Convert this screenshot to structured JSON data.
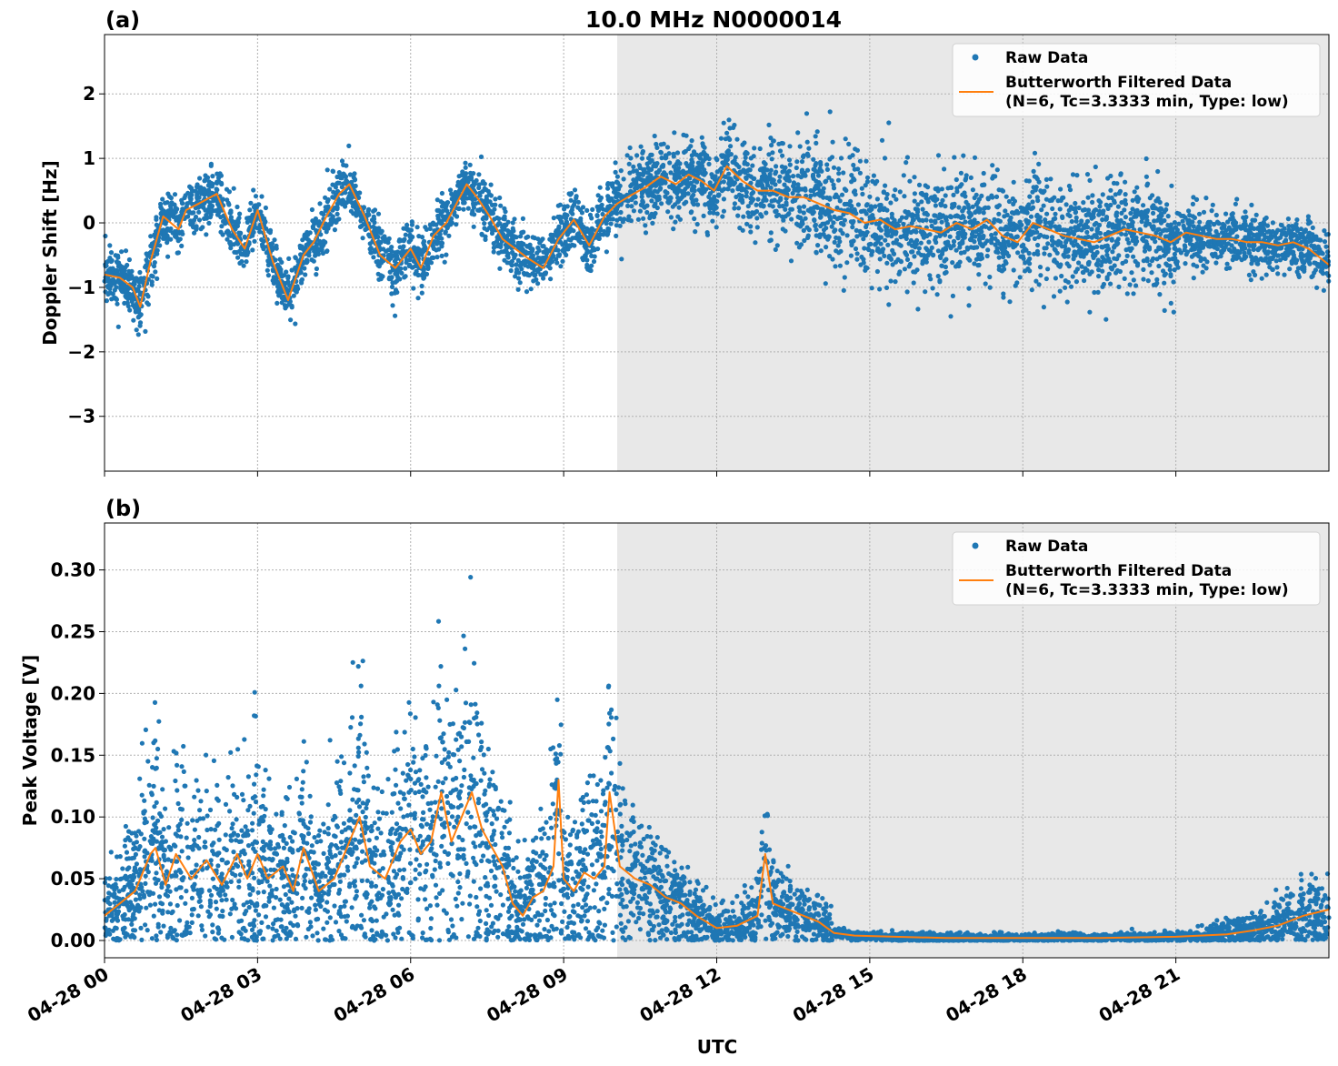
{
  "figure": {
    "title": "10.0 MHz N0000014",
    "xlabel": "UTC",
    "x_ticks": [
      "04-28 00",
      "04-28 03",
      "04-28 06",
      "04-28 09",
      "04-28 12",
      "04-28 15",
      "04-28 18",
      "04-28 21"
    ],
    "shaded_region_hours": [
      10.05,
      24.0
    ],
    "colors": {
      "raw": "#1f77b4",
      "filtered": "#ff7f0e",
      "shade": "#e8e8e8",
      "grid": "#b0b0b0"
    },
    "legend": {
      "raw_label": "Raw Data",
      "filtered_label_line1": "Butterworth Filtered Data",
      "filtered_label_line2": "(N=6, Tc=3.3333 min, Type: low)",
      "placement": "top-right"
    }
  },
  "chart_data": [
    {
      "type": "scatter",
      "panel_label": "(a)",
      "ylabel": "Doppler Shift [Hz]",
      "xlim_hours": [
        0,
        24
      ],
      "ylim": [
        -3.85,
        2.92
      ],
      "y_ticks": [
        2,
        1,
        0,
        -1,
        -2,
        -3
      ],
      "y_tick_labels": [
        "2",
        "1",
        "0",
        "−1",
        "−2",
        "−3"
      ],
      "grid": true,
      "filtered_series": {
        "name": "Butterworth Filtered Data",
        "x": [
          0,
          0.3,
          0.55,
          0.7,
          0.9,
          1.15,
          1.45,
          1.6,
          1.85,
          2.2,
          2.5,
          2.75,
          3.0,
          3.3,
          3.6,
          3.9,
          4.1,
          4.35,
          4.6,
          4.8,
          5.1,
          5.4,
          5.7,
          6.0,
          6.2,
          6.45,
          6.7,
          6.9,
          7.1,
          7.3,
          7.55,
          7.8,
          8.05,
          8.3,
          8.6,
          8.9,
          9.2,
          9.5,
          9.8,
          10.05,
          10.3,
          10.6,
          10.9,
          11.2,
          11.45,
          11.7,
          11.95,
          12.2,
          12.5,
          12.8,
          13.1,
          13.4,
          13.7,
          14.0,
          14.3,
          14.6,
          14.9,
          15.2,
          15.5,
          15.8,
          16.1,
          16.4,
          16.7,
          17.0,
          17.3,
          17.6,
          17.9,
          18.2,
          18.5,
          18.8,
          19.1,
          19.4,
          19.7,
          20.0,
          20.3,
          20.6,
          20.9,
          21.2,
          21.5,
          21.8,
          22.1,
          22.4,
          22.7,
          23.0,
          23.3,
          23.6,
          24.0
        ],
        "y": [
          -0.8,
          -0.85,
          -1.0,
          -1.3,
          -0.6,
          0.1,
          -0.1,
          0.2,
          0.3,
          0.45,
          -0.1,
          -0.4,
          0.2,
          -0.6,
          -1.2,
          -0.5,
          -0.3,
          0.1,
          0.45,
          0.6,
          0.1,
          -0.5,
          -0.7,
          -0.4,
          -0.7,
          -0.2,
          0.0,
          0.3,
          0.6,
          0.4,
          0.1,
          -0.25,
          -0.4,
          -0.55,
          -0.7,
          -0.25,
          0.05,
          -0.35,
          0.1,
          0.3,
          0.42,
          0.55,
          0.72,
          0.6,
          0.75,
          0.65,
          0.5,
          0.88,
          0.65,
          0.5,
          0.5,
          0.4,
          0.4,
          0.3,
          0.2,
          0.15,
          0.0,
          0.05,
          -0.1,
          -0.05,
          -0.1,
          -0.15,
          0.0,
          -0.1,
          0.05,
          -0.2,
          -0.3,
          0.0,
          -0.1,
          -0.2,
          -0.25,
          -0.3,
          -0.2,
          -0.1,
          -0.15,
          -0.2,
          -0.3,
          -0.15,
          -0.2,
          -0.25,
          -0.25,
          -0.3,
          -0.3,
          -0.35,
          -0.3,
          -0.4,
          -0.65
        ]
      }
    },
    {
      "type": "scatter",
      "panel_label": "(b)",
      "ylabel": "Peak Voltage [V]",
      "xlim_hours": [
        0,
        24
      ],
      "ylim": [
        -0.014,
        0.338
      ],
      "y_ticks": [
        0.0,
        0.05,
        0.1,
        0.15,
        0.2,
        0.25,
        0.3
      ],
      "y_tick_labels": [
        "0.00",
        "0.05",
        "0.10",
        "0.15",
        "0.20",
        "0.25",
        "0.30"
      ],
      "grid": true,
      "filtered_series": {
        "name": "Butterworth Filtered Data",
        "x": [
          0,
          0.3,
          0.6,
          0.9,
          1.0,
          1.2,
          1.4,
          1.7,
          2.0,
          2.3,
          2.6,
          2.8,
          3.0,
          3.2,
          3.5,
          3.7,
          3.9,
          4.2,
          4.5,
          4.8,
          5.0,
          5.2,
          5.5,
          5.8,
          6.0,
          6.2,
          6.4,
          6.6,
          6.8,
          7.0,
          7.2,
          7.4,
          7.6,
          7.8,
          8.0,
          8.2,
          8.4,
          8.6,
          8.8,
          8.9,
          9.0,
          9.2,
          9.4,
          9.6,
          9.8,
          9.9,
          10.1,
          10.4,
          10.7,
          11.0,
          11.3,
          11.6,
          12.0,
          12.4,
          12.8,
          12.95,
          13.1,
          13.4,
          13.7,
          14.0,
          14.3,
          14.7,
          15.5,
          16.5,
          18.0,
          19.5,
          21.0,
          22.0,
          22.5,
          23.0,
          23.5,
          24.0
        ],
        "y": [
          0.02,
          0.03,
          0.04,
          0.07,
          0.075,
          0.045,
          0.07,
          0.05,
          0.065,
          0.045,
          0.07,
          0.05,
          0.07,
          0.05,
          0.06,
          0.04,
          0.075,
          0.04,
          0.05,
          0.08,
          0.1,
          0.06,
          0.05,
          0.08,
          0.09,
          0.07,
          0.08,
          0.12,
          0.08,
          0.1,
          0.12,
          0.09,
          0.075,
          0.06,
          0.03,
          0.02,
          0.035,
          0.04,
          0.06,
          0.13,
          0.05,
          0.04,
          0.055,
          0.05,
          0.06,
          0.12,
          0.06,
          0.05,
          0.045,
          0.035,
          0.03,
          0.02,
          0.01,
          0.012,
          0.02,
          0.07,
          0.03,
          0.025,
          0.02,
          0.015,
          0.006,
          0.004,
          0.003,
          0.002,
          0.002,
          0.002,
          0.003,
          0.005,
          0.008,
          0.012,
          0.02,
          0.025
        ]
      }
    }
  ]
}
